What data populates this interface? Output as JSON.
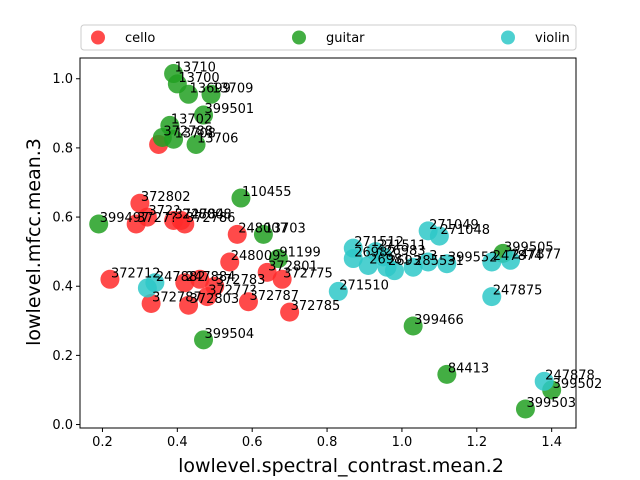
{
  "chart_data": {
    "type": "scatter",
    "xlabel": "lowlevel.spectral_contrast.mean.2",
    "ylabel": "lowlevel.mfcc.mean.3",
    "xlim": [
      0.14,
      1.465
    ],
    "ylim": [
      -0.01,
      1.06
    ],
    "xticks": [
      0.2,
      0.4,
      0.6,
      0.8,
      1.0,
      1.2,
      1.4
    ],
    "yticks": [
      0.0,
      0.2,
      0.4,
      0.6,
      0.8,
      1.0
    ],
    "legend_position": "top",
    "series": [
      {
        "name": "cello",
        "color": "#ff2a2a",
        "points": [
          {
            "x": 0.35,
            "y": 0.81,
            "label": ""
          },
          {
            "x": 0.3,
            "y": 0.64,
            "label": "372802"
          },
          {
            "x": 0.32,
            "y": 0.6,
            "label": "372?"
          },
          {
            "x": 0.29,
            "y": 0.58,
            "label": "3727?"
          },
          {
            "x": 0.39,
            "y": 0.59,
            "label": "372784"
          },
          {
            "x": 0.41,
            "y": 0.59,
            "label": "248008"
          },
          {
            "x": 0.42,
            "y": 0.58,
            "label": "372786"
          },
          {
            "x": 0.56,
            "y": 0.55,
            "label": "248007"
          },
          {
            "x": 0.54,
            "y": 0.47,
            "label": "248009"
          },
          {
            "x": 0.64,
            "y": 0.44,
            "label": "372801"
          },
          {
            "x": 0.68,
            "y": 0.42,
            "label": "372775"
          },
          {
            "x": 0.46,
            "y": 0.42,
            "label": ""
          },
          {
            "x": 0.5,
            "y": 0.4,
            "label": "372783"
          },
          {
            "x": 0.48,
            "y": 0.37,
            "label": "37277?"
          },
          {
            "x": 0.22,
            "y": 0.42,
            "label": "372712"
          },
          {
            "x": 0.33,
            "y": 0.35,
            "label": "372787"
          },
          {
            "x": 0.43,
            "y": 0.345,
            "label": "372803"
          },
          {
            "x": 0.59,
            "y": 0.355,
            "label": "372787"
          },
          {
            "x": 0.7,
            "y": 0.325,
            "label": "372785"
          },
          {
            "x": 0.42,
            "y": 0.41,
            "label": "247884"
          }
        ]
      },
      {
        "name": "guitar",
        "color": "#22a022",
        "points": [
          {
            "x": 0.39,
            "y": 1.015,
            "label": "13710"
          },
          {
            "x": 0.4,
            "y": 0.985,
            "label": "13700"
          },
          {
            "x": 0.43,
            "y": 0.955,
            "label": "13699"
          },
          {
            "x": 0.49,
            "y": 0.955,
            "label": "13709"
          },
          {
            "x": 0.47,
            "y": 0.895,
            "label": "399501"
          },
          {
            "x": 0.38,
            "y": 0.865,
            "label": "13702"
          },
          {
            "x": 0.36,
            "y": 0.83,
            "label": "372788"
          },
          {
            "x": 0.39,
            "y": 0.825,
            "label": "13708"
          },
          {
            "x": 0.45,
            "y": 0.81,
            "label": "13706"
          },
          {
            "x": 0.57,
            "y": 0.655,
            "label": "110455"
          },
          {
            "x": 0.63,
            "y": 0.55,
            "label": "13703"
          },
          {
            "x": 0.19,
            "y": 0.58,
            "label": "399497"
          },
          {
            "x": 0.67,
            "y": 0.48,
            "label": "91199"
          },
          {
            "x": 0.47,
            "y": 0.245,
            "label": "399504"
          },
          {
            "x": 1.03,
            "y": 0.285,
            "label": "399466"
          },
          {
            "x": 1.12,
            "y": 0.145,
            "label": "84413"
          },
          {
            "x": 1.27,
            "y": 0.495,
            "label": "399505"
          },
          {
            "x": 1.4,
            "y": 0.1,
            "label": "399502"
          },
          {
            "x": 1.33,
            "y": 0.045,
            "label": "399503"
          }
        ]
      },
      {
        "name": "violin",
        "color": "#2ec8c8",
        "points": [
          {
            "x": 0.34,
            "y": 0.41,
            "label": "247882"
          },
          {
            "x": 0.32,
            "y": 0.395,
            "label": ""
          },
          {
            "x": 0.83,
            "y": 0.385,
            "label": "271510"
          },
          {
            "x": 0.87,
            "y": 0.51,
            "label": "271512"
          },
          {
            "x": 0.87,
            "y": 0.48,
            "label": "26982"
          },
          {
            "x": 0.93,
            "y": 0.5,
            "label": "271511"
          },
          {
            "x": 0.95,
            "y": 0.485,
            "label": "26983"
          },
          {
            "x": 0.91,
            "y": 0.46,
            "label": "26981"
          },
          {
            "x": 0.96,
            "y": 0.455,
            "label": "2693"
          },
          {
            "x": 0.98,
            "y": 0.445,
            "label": ""
          },
          {
            "x": 1.03,
            "y": 0.455,
            "label": "285531"
          },
          {
            "x": 1.07,
            "y": 0.47,
            "label": "3"
          },
          {
            "x": 1.07,
            "y": 0.56,
            "label": "271049"
          },
          {
            "x": 1.1,
            "y": 0.545,
            "label": "271048"
          },
          {
            "x": 1.12,
            "y": 0.465,
            "label": "399552"
          },
          {
            "x": 1.24,
            "y": 0.47,
            "label": "247874"
          },
          {
            "x": 1.29,
            "y": 0.475,
            "label": "247877"
          },
          {
            "x": 1.24,
            "y": 0.37,
            "label": "247875"
          },
          {
            "x": 1.38,
            "y": 0.125,
            "label": "247878"
          }
        ]
      }
    ]
  }
}
